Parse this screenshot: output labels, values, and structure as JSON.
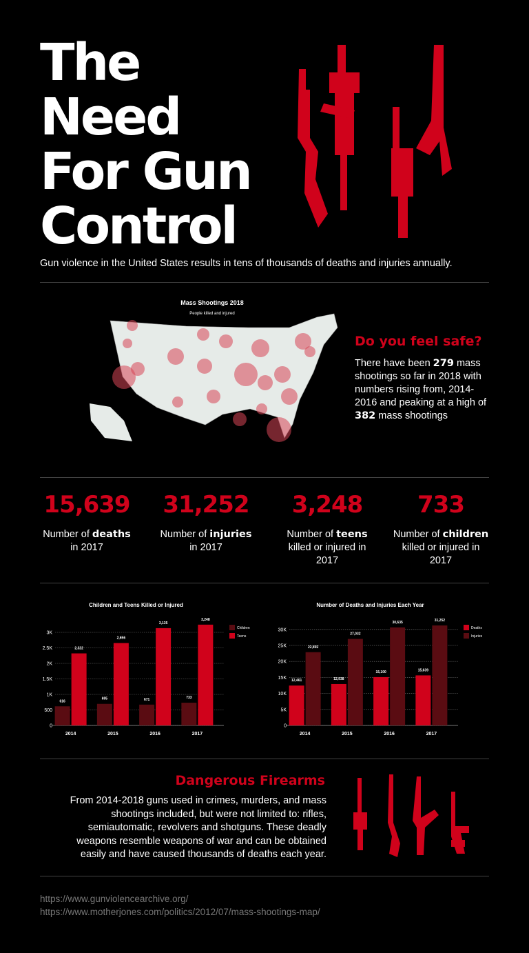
{
  "header": {
    "title": [
      "The",
      "Need",
      "For Gun",
      "Control"
    ],
    "subtitle": "Gun violence in the United States results in tens of thousands of deaths and injuries annually."
  },
  "map": {
    "title": "Mass Shootings 2018",
    "subtitle": "People killed and injured"
  },
  "safe": {
    "heading": "Do you feel safe?",
    "text": [
      "There have been ",
      "279",
      " mass shootings so far in 2018 with numbers rising from, 2014-2016 and peaking at a high of ",
      "382",
      " mass shootings"
    ]
  },
  "stats": [
    {
      "value": "15,639",
      "text": [
        "Number of ",
        "deaths",
        " in 2017"
      ]
    },
    {
      "value": "31,252",
      "text": [
        "Number of ",
        "injuries",
        " in 2017"
      ]
    },
    {
      "value": "3,248",
      "text": [
        "Number of ",
        "teens",
        " killed or injured in 2017"
      ]
    },
    {
      "value": "733",
      "text": [
        "Number of ",
        "children",
        " killed or injured in 2017"
      ]
    }
  ],
  "chart_data": [
    {
      "type": "bar",
      "title": "Children and Teens Killed or Injured",
      "categories": [
        "2014",
        "2015",
        "2016",
        "2017"
      ],
      "series": [
        {
          "name": "Children",
          "color": "#5a0c12",
          "values": [
            616,
            695,
            671,
            733
          ]
        },
        {
          "name": "Teens",
          "color": "#d0021b",
          "values": [
            2322,
            2656,
            3135,
            3248
          ],
          "value_labels": [
            "2,322",
            "2,656",
            "3,135",
            "3,248"
          ]
        }
      ],
      "ylim": [
        0,
        3300
      ],
      "yticks": [
        0,
        500,
        {
          "value": 1000,
          "label": "1K"
        },
        {
          "value": 1500,
          "label": "1.5K"
        },
        {
          "value": 2000,
          "label": "2K"
        },
        {
          "value": 2500,
          "label": "2.5K"
        },
        {
          "value": 3000,
          "label": "3K"
        }
      ],
      "grid": true,
      "legend": "right"
    },
    {
      "type": "bar",
      "title": "Number of Deaths and Injuries Each Year",
      "categories": [
        "2014",
        "2015",
        "2016",
        "2017"
      ],
      "series": [
        {
          "name": "Deaths",
          "color": "#d0021b",
          "values": [
            12461,
            12938,
            15100,
            15639
          ],
          "value_labels": [
            "12,461",
            "12,938",
            "15,100",
            "15,639"
          ]
        },
        {
          "name": "Injuries",
          "color": "#5a0c12",
          "values": [
            22892,
            27032,
            30635,
            31252
          ],
          "value_labels": [
            "22,892",
            "27,032",
            "30,635",
            "31,252"
          ]
        }
      ],
      "ylim": [
        0,
        32000
      ],
      "yticks": [
        0,
        {
          "value": 5000,
          "label": "5K"
        },
        {
          "value": 10000,
          "label": "10K"
        },
        {
          "value": 15000,
          "label": "15K"
        },
        {
          "value": 20000,
          "label": "20K"
        },
        {
          "value": 25000,
          "label": "25K"
        },
        {
          "value": 30000,
          "label": "30K"
        }
      ],
      "grid": true,
      "legend": "right"
    }
  ],
  "firearms": {
    "heading": "Dangerous Firearms",
    "text": "From 2014-2018 guns used in crimes, murders, and mass shootings included, but were not limited to: rifles, semiautomatic, revolvers and shotguns. These deadly weapons resemble weapons of war and can be obtained easily and have caused thousands of deaths each year."
  },
  "sources": [
    "https://www.gunviolencearchive.org/",
    "https://www.motherjones.com/politics/2012/07/mass-shootings-map/"
  ]
}
